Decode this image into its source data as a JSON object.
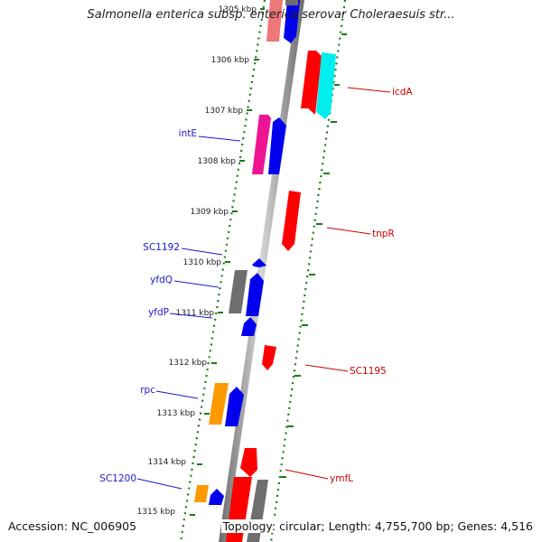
{
  "title": "Salmonella enterica subsp. enterica serovar Choleraesuis str...",
  "footer": {
    "accession": "Accession: NC_006905",
    "summary": "Topology: circular; Length: 4,755,700 bp; Genes: 4,516"
  },
  "colors": {
    "backbone": "#8c8c8c",
    "tick": "#1a7a1a",
    "label_blue": "#1a1acc",
    "label_red": "#cc0000",
    "gene_red": "#ff0000",
    "gene_blue": "#0000ee",
    "gene_gray": "#6e6e6e",
    "gene_magenta": "#ee1493",
    "gene_cyan": "#00eeee",
    "gene_orange": "#ff9900",
    "gene_pink": "#ee7777"
  },
  "ticks": [
    "1305 kbp",
    "1306 kbp",
    "1307 kbp",
    "1308 kbp",
    "1309 kbp",
    "1310 kbp",
    "1311 kbp",
    "1312 kbp",
    "1313 kbp",
    "1314 kbp",
    "1315 kbp"
  ],
  "genes": [
    {
      "color": "gene_pink"
    },
    {
      "color": "gene_blue"
    },
    {
      "color": "gene_gray"
    },
    {
      "color": "gene_red"
    },
    {
      "color": "gene_cyan"
    },
    {
      "color": "gene_magenta"
    },
    {
      "color": "gene_blue"
    },
    {
      "color": "gene_red"
    },
    {
      "color": "gene_blue"
    },
    {
      "color": "gene_gray"
    },
    {
      "color": "gene_blue"
    },
    {
      "color": "gene_blue"
    },
    {
      "color": "gene_red"
    },
    {
      "color": "gene_orange"
    },
    {
      "color": "gene_blue"
    },
    {
      "color": "gene_red"
    },
    {
      "color": "gene_orange"
    },
    {
      "color": "gene_blue"
    },
    {
      "color": "gene_red"
    },
    {
      "color": "gene_gray"
    }
  ],
  "labels": {
    "left": [
      "intE",
      "SC1192",
      "yfdQ",
      "yfdP",
      "rpc",
      "SC1200"
    ],
    "right": [
      "icdA",
      "tnpR",
      "SC1195",
      "ymfL"
    ]
  }
}
